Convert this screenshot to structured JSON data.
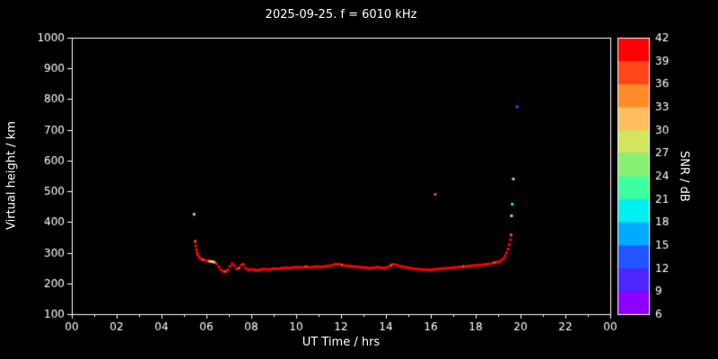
{
  "chart_data": {
    "type": "scatter",
    "title": "2025-09-25. f = 6010 kHz",
    "xlabel": "UT Time / hrs",
    "ylabel": "Virtual height / km",
    "colorbar_label": "SNR / dB",
    "xlim": [
      0,
      24
    ],
    "ylim": [
      100,
      1000
    ],
    "snr_lim": [
      6,
      42
    ],
    "background": "#000000",
    "frame_color": "#ffffff",
    "x_ticks": {
      "values": [
        0,
        2,
        4,
        6,
        8,
        10,
        12,
        14,
        16,
        18,
        20,
        22,
        24
      ],
      "labels": [
        "00",
        "02",
        "04",
        "06",
        "08",
        "10",
        "12",
        "14",
        "16",
        "18",
        "20",
        "22",
        "00"
      ]
    },
    "y_ticks": [
      100,
      200,
      300,
      400,
      500,
      600,
      700,
      800,
      900,
      1000
    ],
    "colorbar_ticks": [
      6,
      9,
      12,
      15,
      18,
      21,
      24,
      27,
      30,
      33,
      36,
      39,
      42
    ],
    "colorbar_colors": [
      "#8c00ff",
      "#4d26ff",
      "#2255ff",
      "#00aaff",
      "#00f0f0",
      "#3cffa0",
      "#87f073",
      "#d2e65f",
      "#ffbe5f",
      "#ff8c28",
      "#ff4719",
      "#ff0000"
    ],
    "points": [
      [
        5.45,
        425,
        25
      ],
      [
        5.5,
        337,
        38
      ],
      [
        5.52,
        322,
        40
      ],
      [
        5.55,
        310,
        41
      ],
      [
        5.58,
        300,
        41
      ],
      [
        5.62,
        292,
        41
      ],
      [
        5.68,
        285,
        41
      ],
      [
        5.75,
        280,
        41
      ],
      [
        5.85,
        277,
        37
      ],
      [
        5.95,
        275,
        41
      ],
      [
        6.05,
        273,
        41
      ],
      [
        6.15,
        272,
        30
      ],
      [
        6.25,
        271,
        29
      ],
      [
        6.35,
        269,
        31
      ],
      [
        6.45,
        264,
        41
      ],
      [
        6.55,
        254,
        41
      ],
      [
        6.65,
        244,
        41
      ],
      [
        6.75,
        239,
        41
      ],
      [
        6.85,
        239,
        37
      ],
      [
        6.95,
        244,
        41
      ],
      [
        7.05,
        256,
        41
      ],
      [
        7.15,
        264,
        41
      ],
      [
        7.25,
        258,
        41
      ],
      [
        7.35,
        247,
        41
      ],
      [
        7.45,
        250,
        37
      ],
      [
        7.55,
        260,
        41
      ],
      [
        7.65,
        262,
        41
      ],
      [
        7.75,
        250,
        41
      ],
      [
        7.85,
        245,
        41
      ],
      [
        7.95,
        245,
        41
      ],
      [
        8.05,
        246,
        41
      ],
      [
        8.15,
        244,
        41
      ],
      [
        8.25,
        243,
        41
      ],
      [
        8.35,
        244,
        41
      ],
      [
        8.45,
        246,
        41
      ],
      [
        8.55,
        247,
        41
      ],
      [
        8.65,
        246,
        41
      ],
      [
        8.75,
        245,
        41
      ],
      [
        8.85,
        246,
        41
      ],
      [
        8.95,
        248,
        41
      ],
      [
        9.05,
        248,
        41
      ],
      [
        9.15,
        247,
        41
      ],
      [
        9.25,
        248,
        41
      ],
      [
        9.35,
        250,
        41
      ],
      [
        9.45,
        250,
        41
      ],
      [
        9.55,
        252,
        41
      ],
      [
        9.65,
        250,
        41
      ],
      [
        9.75,
        250,
        41
      ],
      [
        9.85,
        252,
        41
      ],
      [
        9.95,
        252,
        41
      ],
      [
        10.05,
        253,
        41
      ],
      [
        10.15,
        252,
        41
      ],
      [
        10.25,
        252,
        41
      ],
      [
        10.35,
        253,
        41
      ],
      [
        10.45,
        254,
        38
      ],
      [
        10.55,
        253,
        41
      ],
      [
        10.65,
        252,
        41
      ],
      [
        10.75,
        253,
        41
      ],
      [
        10.85,
        254,
        41
      ],
      [
        10.95,
        255,
        41
      ],
      [
        11.05,
        254,
        41
      ],
      [
        11.15,
        254,
        41
      ],
      [
        11.25,
        255,
        41
      ],
      [
        11.35,
        256,
        41
      ],
      [
        11.45,
        257,
        41
      ],
      [
        11.55,
        258,
        41
      ],
      [
        11.65,
        260,
        41
      ],
      [
        11.75,
        262,
        41
      ],
      [
        11.85,
        263,
        41
      ],
      [
        11.95,
        262,
        41
      ],
      [
        12.05,
        260,
        38
      ],
      [
        12.15,
        258,
        41
      ],
      [
        12.25,
        257,
        41
      ],
      [
        12.35,
        257,
        41
      ],
      [
        12.45,
        256,
        41
      ],
      [
        12.55,
        255,
        41
      ],
      [
        12.65,
        254,
        41
      ],
      [
        12.75,
        254,
        41
      ],
      [
        12.85,
        253,
        41
      ],
      [
        12.95,
        252,
        41
      ],
      [
        13.05,
        252,
        41
      ],
      [
        13.15,
        251,
        41
      ],
      [
        13.25,
        250,
        41
      ],
      [
        13.35,
        250,
        41
      ],
      [
        13.45,
        251,
        41
      ],
      [
        13.55,
        252,
        41
      ],
      [
        13.65,
        253,
        41
      ],
      [
        13.75,
        252,
        41
      ],
      [
        13.85,
        250,
        41
      ],
      [
        13.95,
        250,
        41
      ],
      [
        14.05,
        252,
        41
      ],
      [
        14.15,
        256,
        41
      ],
      [
        14.25,
        260,
        37
      ],
      [
        14.35,
        262,
        41
      ],
      [
        14.45,
        260,
        41
      ],
      [
        14.55,
        258,
        41
      ],
      [
        14.65,
        256,
        41
      ],
      [
        14.75,
        254,
        41
      ],
      [
        14.85,
        253,
        41
      ],
      [
        14.95,
        252,
        41
      ],
      [
        15.05,
        250,
        41
      ],
      [
        15.15,
        249,
        41
      ],
      [
        15.25,
        248,
        41
      ],
      [
        15.35,
        247,
        41
      ],
      [
        15.45,
        246,
        41
      ],
      [
        15.55,
        246,
        41
      ],
      [
        15.65,
        245,
        41
      ],
      [
        15.75,
        245,
        41
      ],
      [
        15.85,
        244,
        41
      ],
      [
        15.95,
        244,
        41
      ],
      [
        16.05,
        245,
        41
      ],
      [
        16.15,
        246,
        41
      ],
      [
        16.2,
        490,
        38
      ],
      [
        16.25,
        246,
        41
      ],
      [
        16.35,
        247,
        41
      ],
      [
        16.45,
        248,
        41
      ],
      [
        16.55,
        248,
        41
      ],
      [
        16.65,
        249,
        41
      ],
      [
        16.75,
        250,
        41
      ],
      [
        16.85,
        250,
        41
      ],
      [
        16.95,
        251,
        41
      ],
      [
        17.05,
        252,
        41
      ],
      [
        17.15,
        252,
        41
      ],
      [
        17.25,
        253,
        41
      ],
      [
        17.35,
        254,
        41
      ],
      [
        17.45,
        255,
        38
      ],
      [
        17.55,
        255,
        41
      ],
      [
        17.65,
        256,
        41
      ],
      [
        17.75,
        257,
        41
      ],
      [
        17.85,
        258,
        41
      ],
      [
        17.95,
        258,
        41
      ],
      [
        18.05,
        259,
        41
      ],
      [
        18.15,
        260,
        41
      ],
      [
        18.25,
        260,
        41
      ],
      [
        18.35,
        261,
        41
      ],
      [
        18.45,
        262,
        41
      ],
      [
        18.55,
        263,
        41
      ],
      [
        18.65,
        264,
        41
      ],
      [
        18.75,
        266,
        41
      ],
      [
        18.85,
        268,
        37
      ],
      [
        18.95,
        270,
        41
      ],
      [
        19.05,
        272,
        41
      ],
      [
        19.15,
        276,
        41
      ],
      [
        19.25,
        282,
        41
      ],
      [
        19.32,
        290,
        41
      ],
      [
        19.38,
        300,
        41
      ],
      [
        19.44,
        312,
        41
      ],
      [
        19.5,
        326,
        41
      ],
      [
        19.55,
        342,
        40
      ],
      [
        19.58,
        358,
        37
      ],
      [
        19.6,
        420,
        26
      ],
      [
        19.63,
        458,
        19
      ],
      [
        19.68,
        540,
        24
      ],
      [
        19.85,
        775,
        13
      ]
    ]
  }
}
